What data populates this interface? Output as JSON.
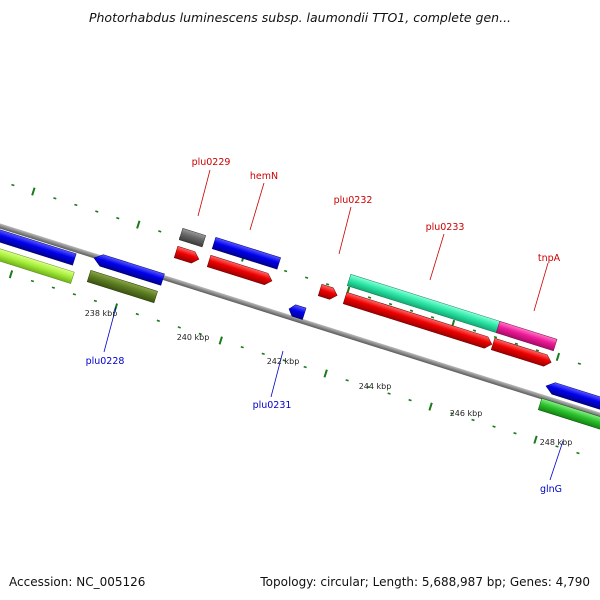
{
  "title": "Photorhabdus luminescens subsp. laumondii TTO1, complete gen...",
  "footer": {
    "accession": "Accession: NC_005126",
    "info": "Topology: circular; Length: 5,688,987 bp; Genes: 4,790"
  },
  "colors": {
    "backbone": "#8c8c8c",
    "tick": "#1a7a1a",
    "label_forward": "#cc0000",
    "label_reverse": "#0000cc"
  },
  "kbp_labels": [
    "238 kbp",
    "240 kbp",
    "242 kbp",
    "244 kbp",
    "246 kbp",
    "248 kbp"
  ],
  "gene_labels": [
    {
      "name": "plu0229",
      "strand": "forward"
    },
    {
      "name": "hemN",
      "strand": "forward"
    },
    {
      "name": "plu0232",
      "strand": "forward"
    },
    {
      "name": "plu0233",
      "strand": "forward"
    },
    {
      "name": "tnpA",
      "strand": "forward"
    },
    {
      "name": "plu0228",
      "strand": "reverse"
    },
    {
      "name": "plu0231",
      "strand": "reverse"
    },
    {
      "name": "glnG",
      "strand": "reverse"
    }
  ]
}
